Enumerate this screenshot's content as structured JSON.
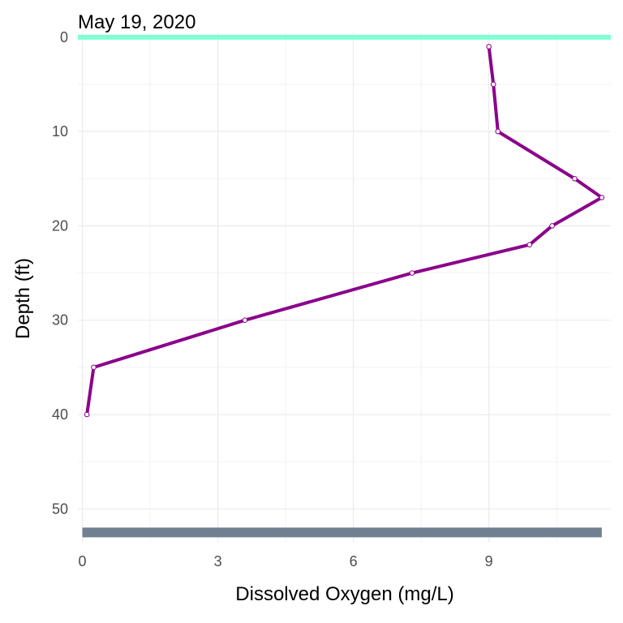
{
  "chart_data": {
    "type": "line",
    "title": "May 19, 2020",
    "xlabel": "Dissolved Oxygen (mg/L)",
    "ylabel": "Depth (ft)",
    "xlim": [
      -0.1,
      11.7
    ],
    "ylim": [
      -0.5,
      53.5
    ],
    "y_reversed": true,
    "x_ticks": [
      0,
      3,
      6,
      9
    ],
    "y_ticks": [
      0,
      10,
      20,
      30,
      40,
      50
    ],
    "grid": true,
    "series": [
      {
        "color": "#8b008b",
        "points": [
          {
            "x": 9.0,
            "y": 1
          },
          {
            "x": 9.1,
            "y": 5
          },
          {
            "x": 9.2,
            "y": 10
          },
          {
            "x": 10.9,
            "y": 15
          },
          {
            "x": 11.5,
            "y": 17
          },
          {
            "x": 10.4,
            "y": 20
          },
          {
            "x": 9.9,
            "y": 22
          },
          {
            "x": 7.3,
            "y": 25
          },
          {
            "x": 3.6,
            "y": 30
          },
          {
            "x": 0.25,
            "y": 35
          },
          {
            "x": 0.1,
            "y": 40
          }
        ]
      }
    ],
    "reference_lines": {
      "surface": {
        "depth": 0,
        "color": "#7fffd4"
      },
      "bottom": {
        "depth": 52.5,
        "color": "#708090"
      }
    },
    "point_fill": "#ffffff"
  }
}
